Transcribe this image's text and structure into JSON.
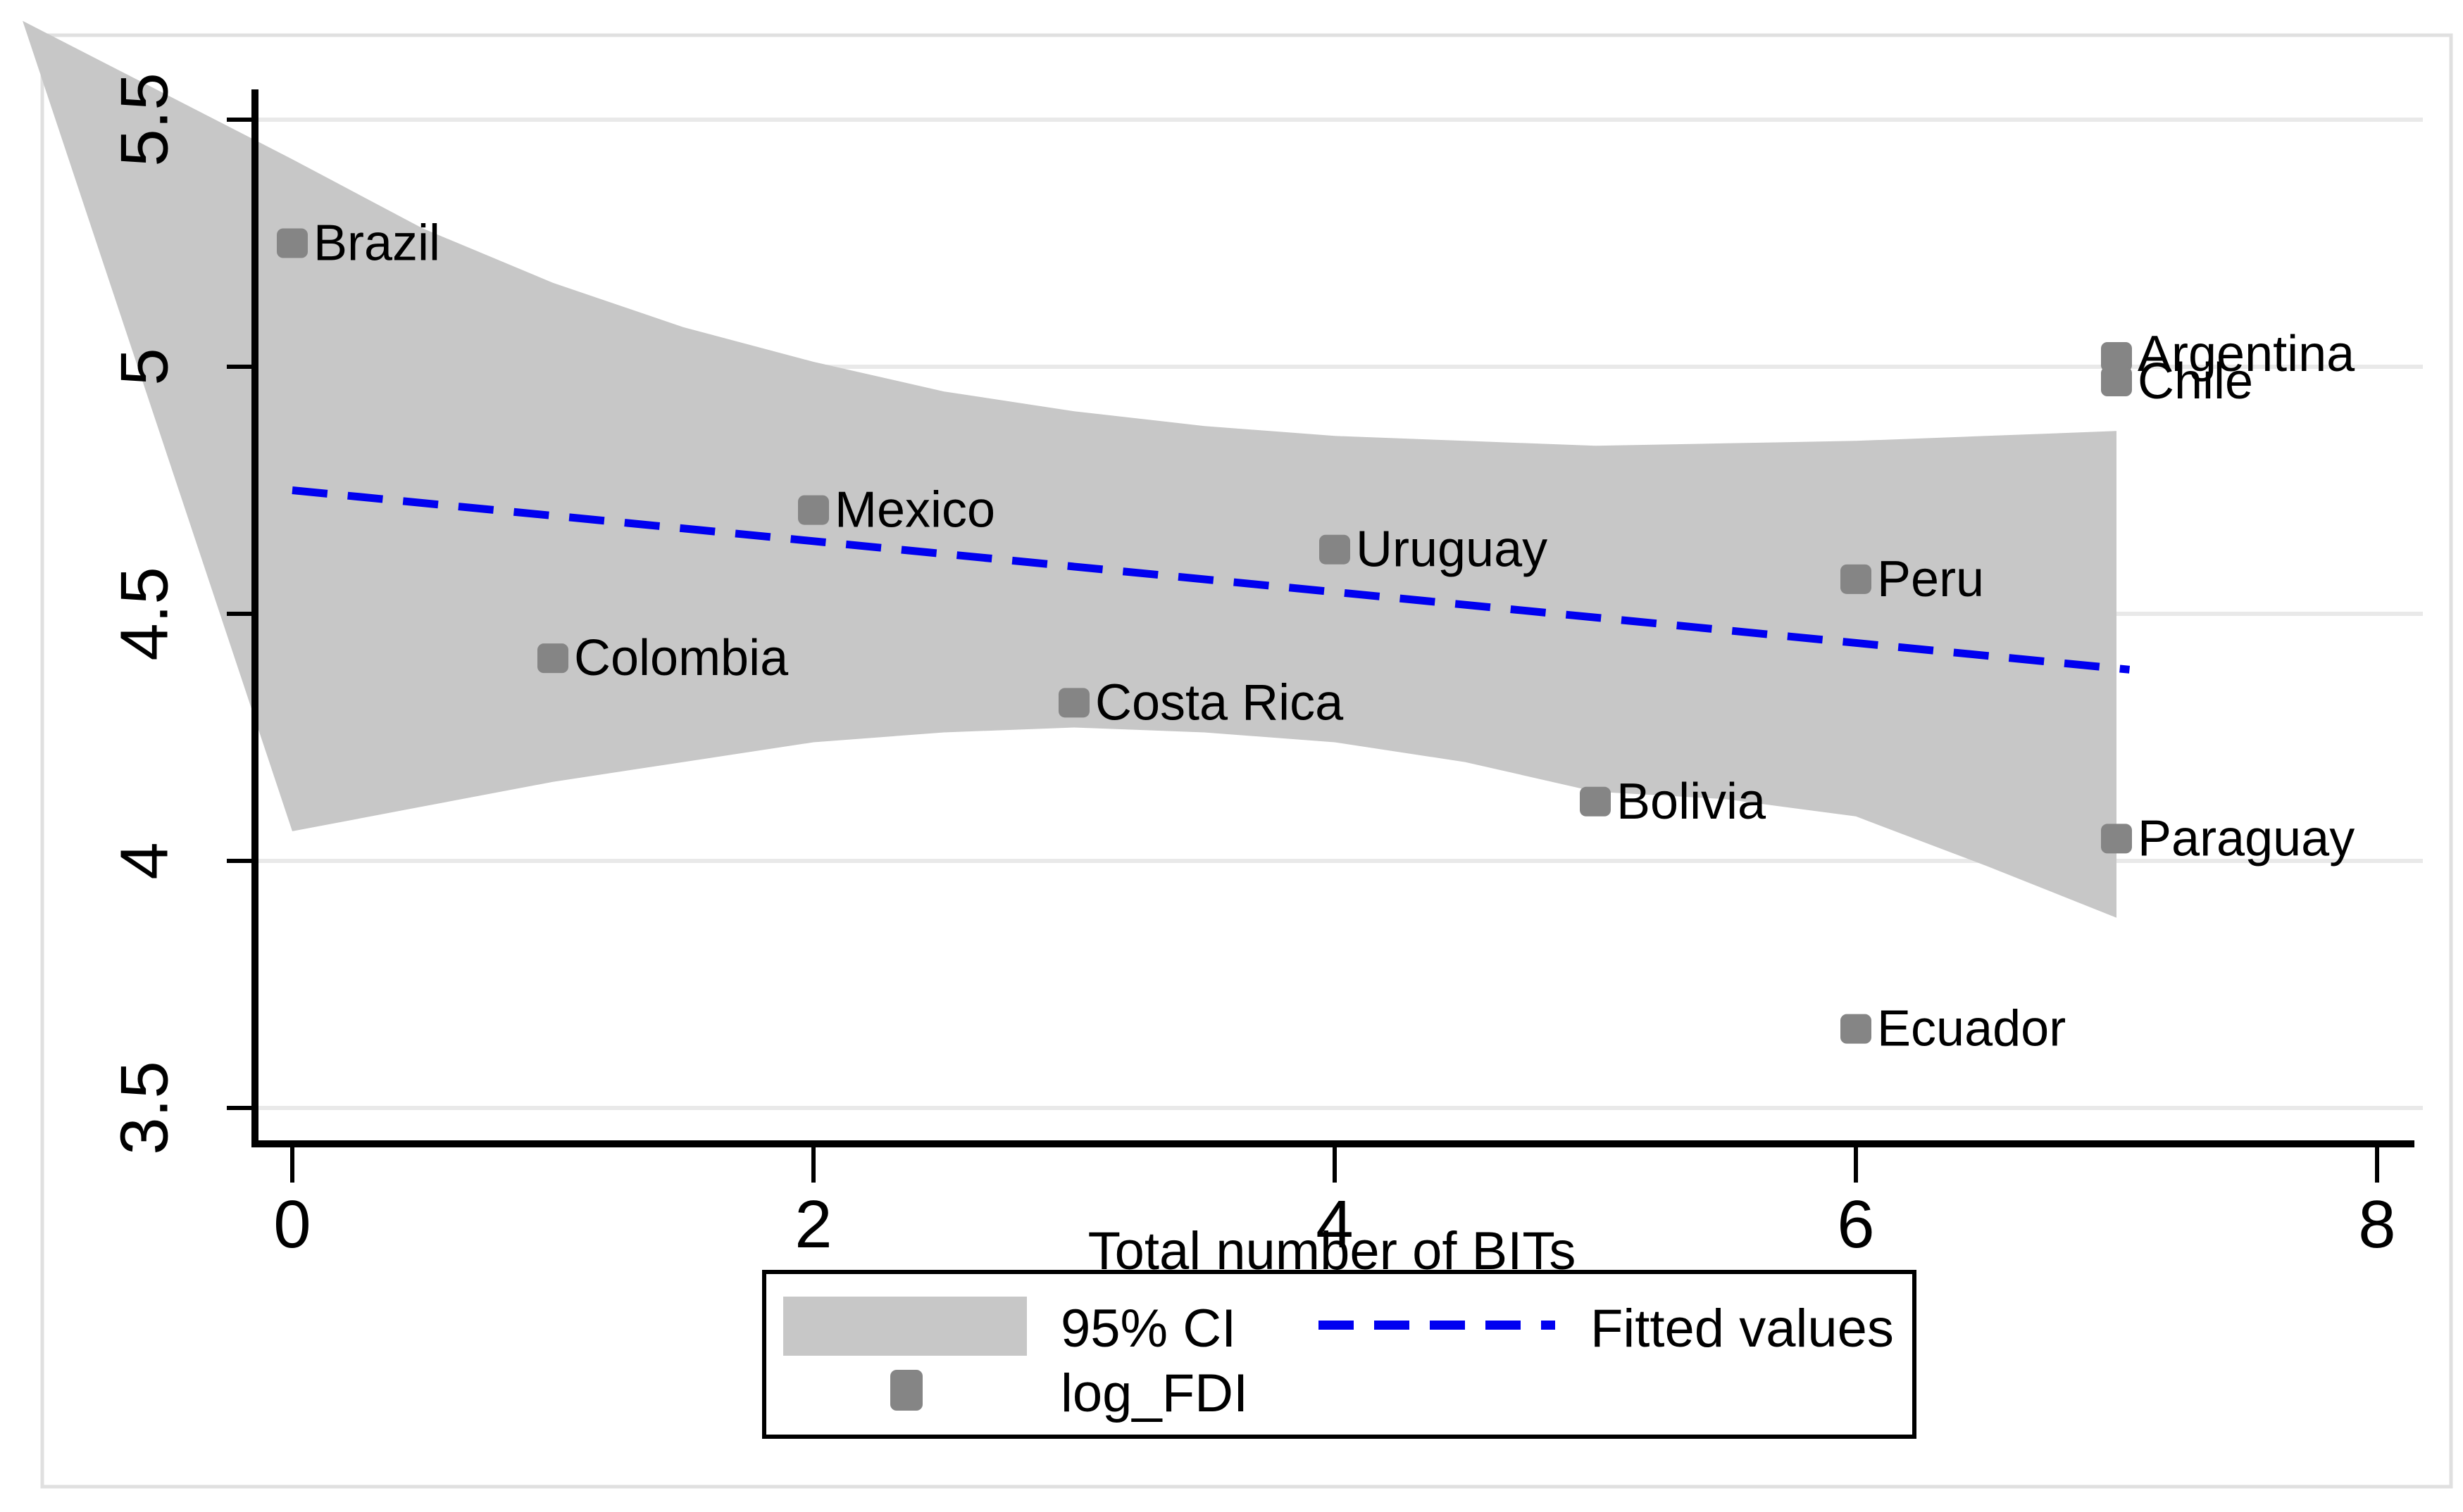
{
  "axis_title_x": "Total number of BITs",
  "legend": {
    "ci_label": "95% CI",
    "fitted_label": "Fitted values",
    "points_label": "log_FDI"
  },
  "chart_data": {
    "type": "scatter",
    "title": "",
    "xlabel": "Total number of BITs",
    "ylabel": "",
    "xlim": [
      -0.15,
      8.15
    ],
    "ylim": [
      3.43,
      5.56
    ],
    "x_ticks": [
      0,
      2,
      4,
      6,
      8
    ],
    "y_ticks": [
      3.5,
      4,
      4.5,
      5,
      5.5
    ],
    "grid": true,
    "legend_position": "bottom-center",
    "points": [
      {
        "label": "Brazil",
        "x": 0,
        "y": 5.25
      },
      {
        "label": "Colombia",
        "x": 1,
        "y": 4.41
      },
      {
        "label": "Mexico",
        "x": 2,
        "y": 4.71
      },
      {
        "label": "Costa Rica",
        "x": 3,
        "y": 4.32
      },
      {
        "label": "Uruguay",
        "x": 4,
        "y": 4.63
      },
      {
        "label": "Bolivia",
        "x": 5,
        "y": 4.12
      },
      {
        "label": "Peru",
        "x": 6,
        "y": 4.57
      },
      {
        "label": "Ecuador",
        "x": 6,
        "y": 3.66
      },
      {
        "label": "Argentina",
        "x": 7,
        "y": 5.02,
        "label_dy": -4
      },
      {
        "label": "Chile",
        "x": 7,
        "y": 4.97,
        "label_dy": 0
      },
      {
        "label": "Paraguay",
        "x": 7,
        "y": 4.045
      }
    ],
    "series": [
      {
        "name": "log_FDI",
        "type": "scatter"
      },
      {
        "name": "Fitted values",
        "type": "line",
        "x": [
          0,
          7.05
        ],
        "y": [
          4.75,
          4.387
        ]
      },
      {
        "name": "95% CI",
        "type": "band",
        "apex": [
          -1.035,
          5.7
        ],
        "x": [
          0,
          0.5,
          1,
          1.5,
          2,
          2.5,
          3,
          3.5,
          4,
          4.5,
          5,
          5.5,
          6,
          6.5,
          7
        ],
        "upper": [
          5.42,
          5.28,
          5.17,
          5.08,
          5.01,
          4.95,
          4.91,
          4.88,
          4.86,
          4.85,
          4.84,
          4.845,
          4.85,
          4.86,
          4.87
        ],
        "lower": [
          4.06,
          4.11,
          4.16,
          4.2,
          4.24,
          4.26,
          4.27,
          4.26,
          4.24,
          4.2,
          4.14,
          4.125,
          4.09,
          3.99,
          3.885
        ]
      }
    ],
    "colors": {
      "band": "#c7c7c7",
      "marker": "#858585",
      "fitted": "#0000f0",
      "gridline": "#e9e9e9",
      "axis": "#000000",
      "text": "#000000",
      "border": "#e0e0e0",
      "background": "#ffffff"
    }
  }
}
